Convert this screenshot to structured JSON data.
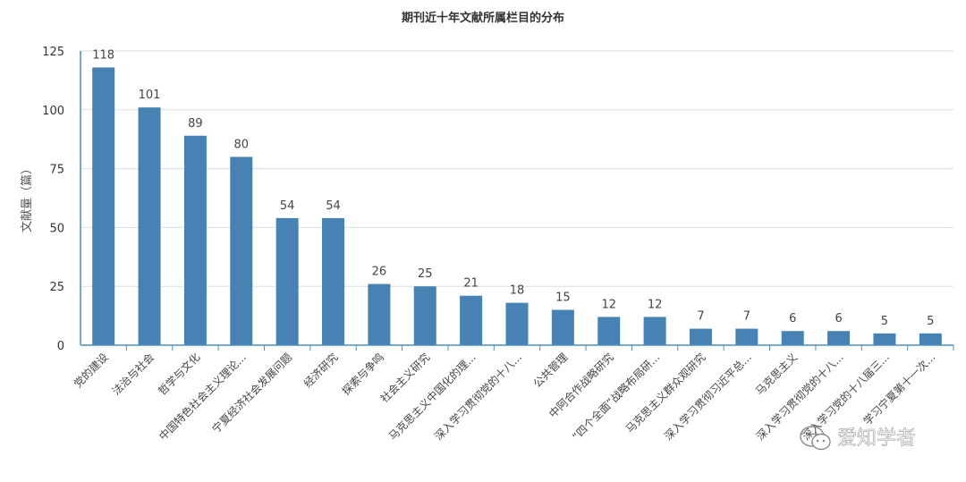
{
  "chart_data": {
    "type": "bar",
    "title": "期刊近十年文献所属栏目的分布",
    "ylabel": "文献量（篇）",
    "xlabel": "",
    "ylim": [
      0,
      125
    ],
    "yticks": [
      0,
      25,
      50,
      75,
      100,
      125
    ],
    "grid": true,
    "bar_color": "#4682b4",
    "categories": [
      "党的建设",
      "法治与社会",
      "哲学与文化",
      "中国特色社会主义理论...",
      "宁夏经济社会发展问题",
      "经济研究",
      "探索与争鸣",
      "社会主义研究",
      "马克思主义中国化的理...",
      "深入学习贯彻党的十八...",
      "公共管理",
      "中阿合作战略研究",
      "“四个全面”战略布局研...",
      "马克思主义群众观研究",
      "深入学习贯彻习近平总...",
      "马克思主义",
      "深入学习贯彻党的十八...",
      "深入学习党的十八届三...",
      "学习宁夏第十一次..."
    ],
    "values": [
      118,
      101,
      89,
      80,
      54,
      54,
      26,
      25,
      21,
      18,
      15,
      12,
      12,
      7,
      7,
      6,
      6,
      5,
      5
    ]
  },
  "watermark": {
    "text": "爱知学者",
    "icon": "wechat-icon"
  }
}
